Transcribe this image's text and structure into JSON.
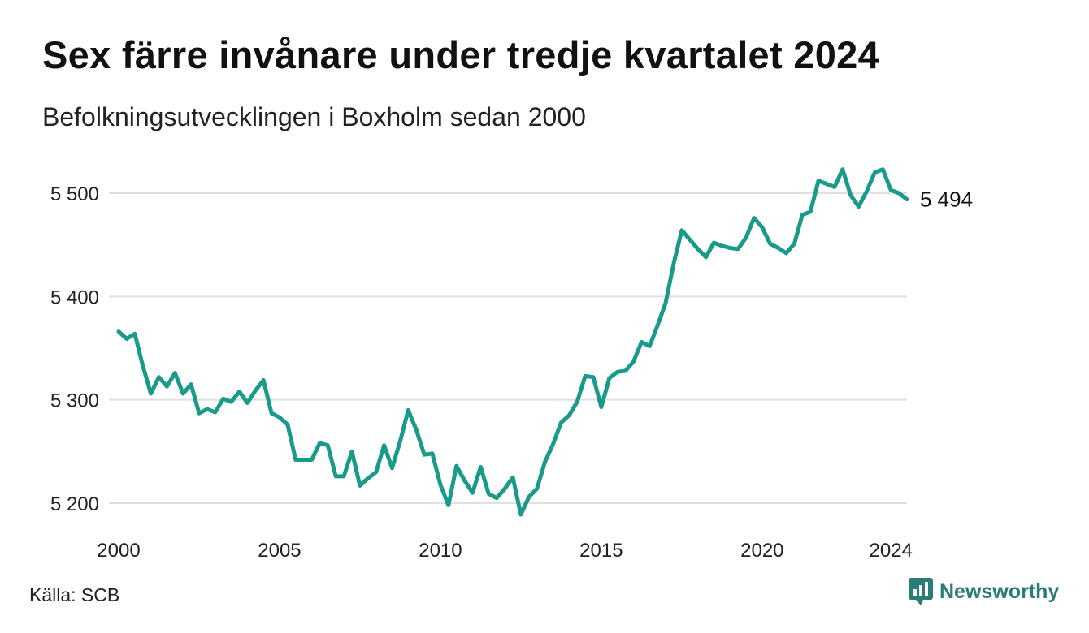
{
  "header": {
    "title": "Sex färre invånare under tredje kvartalet 2024",
    "subtitle": "Befolkningsutvecklingen i Boxholm sedan 2000"
  },
  "footer": {
    "source": "Källa: SCB",
    "brand": "Newsworthy",
    "brand_icon": "newsworthy-logo-icon"
  },
  "colors": {
    "line": "#1a9a8a",
    "grid": "#e0e0e0",
    "brand": "#2a7d72"
  },
  "chart_data": {
    "type": "line",
    "title": "Sex färre invånare under tredje kvartalet 2024",
    "subtitle": "Befolkningsutvecklingen i Boxholm sedan 2000",
    "xlabel": "",
    "ylabel": "",
    "x_ticks": [
      "2000",
      "2005",
      "2010",
      "2015",
      "2020",
      "2024"
    ],
    "y_ticks": [
      "5 200",
      "5 300",
      "5 400",
      "5 500"
    ],
    "ylim": [
      5180,
      5530
    ],
    "xlim": [
      "2000 Q1",
      "2024 Q3"
    ],
    "grid": "horizontal",
    "last_value_label": "5 494",
    "series": [
      {
        "x": [
          "2000 Q1",
          "2000 Q2",
          "2000 Q3",
          "2000 Q4",
          "2001 Q1",
          "2001 Q2",
          "2001 Q3",
          "2001 Q4",
          "2002 Q1",
          "2002 Q2",
          "2002 Q3",
          "2002 Q4",
          "2003 Q1",
          "2003 Q2",
          "2003 Q3",
          "2003 Q4",
          "2004 Q1",
          "2004 Q2",
          "2004 Q3",
          "2004 Q4",
          "2005 Q1",
          "2005 Q2",
          "2005 Q3",
          "2005 Q4",
          "2006 Q1",
          "2006 Q2",
          "2006 Q3",
          "2006 Q4",
          "2007 Q1",
          "2007 Q2",
          "2007 Q3",
          "2007 Q4",
          "2008 Q1",
          "2008 Q2",
          "2008 Q3",
          "2008 Q4",
          "2009 Q1",
          "2009 Q2",
          "2009 Q3",
          "2009 Q4",
          "2010 Q1",
          "2010 Q2",
          "2010 Q3",
          "2010 Q4",
          "2011 Q1",
          "2011 Q2",
          "2011 Q3",
          "2011 Q4",
          "2012 Q1",
          "2012 Q2",
          "2012 Q3",
          "2012 Q4",
          "2013 Q1",
          "2013 Q2",
          "2013 Q3",
          "2013 Q4",
          "2014 Q1",
          "2014 Q2",
          "2014 Q3",
          "2014 Q4",
          "2015 Q1",
          "2015 Q2",
          "2015 Q3",
          "2015 Q4",
          "2016 Q1",
          "2016 Q2",
          "2016 Q3",
          "2016 Q4",
          "2017 Q1",
          "2017 Q2",
          "2017 Q3",
          "2017 Q4",
          "2018 Q1",
          "2018 Q2",
          "2018 Q3",
          "2018 Q4",
          "2019 Q1",
          "2019 Q2",
          "2019 Q3",
          "2019 Q4",
          "2020 Q1",
          "2020 Q2",
          "2020 Q3",
          "2020 Q4",
          "2021 Q1",
          "2021 Q2",
          "2021 Q3",
          "2021 Q4",
          "2022 Q1",
          "2022 Q2",
          "2022 Q3",
          "2022 Q4",
          "2023 Q1",
          "2023 Q2",
          "2023 Q3",
          "2023 Q4",
          "2024 Q1",
          "2024 Q2",
          "2024 Q3"
        ],
        "values": [
          5366,
          5359,
          5364,
          5333,
          5306,
          5322,
          5313,
          5326,
          5306,
          5315,
          5287,
          5291,
          5288,
          5301,
          5298,
          5308,
          5297,
          5309,
          5319,
          5287,
          5283,
          5276,
          5242,
          5242,
          5242,
          5258,
          5256,
          5226,
          5226,
          5250,
          5217,
          5224,
          5230,
          5256,
          5234,
          5260,
          5290,
          5271,
          5247,
          5248,
          5218,
          5198,
          5236,
          5222,
          5210,
          5235,
          5209,
          5205,
          5214,
          5225,
          5189,
          5206,
          5214,
          5240,
          5257,
          5278,
          5285,
          5298,
          5323,
          5322,
          5293,
          5321,
          5327,
          5328,
          5337,
          5356,
          5352,
          5372,
          5394,
          5432,
          5464,
          5455,
          5446,
          5438,
          5452,
          5449,
          5447,
          5446,
          5457,
          5476,
          5467,
          5451,
          5447,
          5442,
          5451,
          5479,
          5482,
          5512,
          5509,
          5506,
          5523,
          5498,
          5487,
          5502,
          5520,
          5523,
          5503,
          5500,
          5494
        ]
      }
    ]
  }
}
